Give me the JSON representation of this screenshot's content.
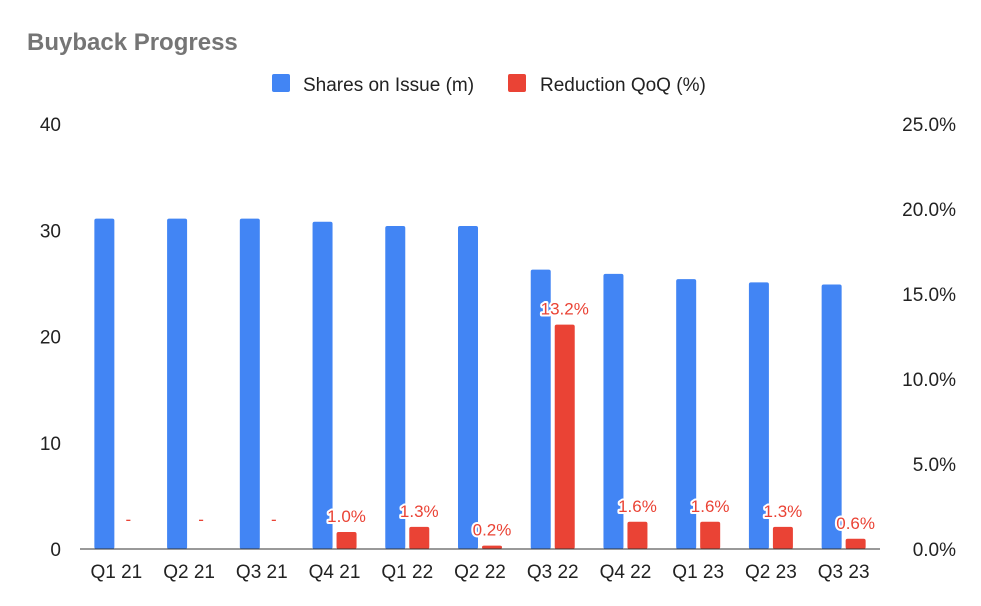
{
  "chart_data": {
    "type": "bar",
    "title": "Buyback Progress",
    "categories": [
      "Q1 21",
      "Q2 21",
      "Q3 21",
      "Q4 21",
      "Q1 22",
      "Q2 22",
      "Q3 22",
      "Q4 22",
      "Q1 23",
      "Q2 23",
      "Q3 23"
    ],
    "series": [
      {
        "name": "Shares on Issue (m)",
        "axis": "left",
        "color": "#4285f4",
        "values": [
          31.1,
          31.1,
          31.1,
          30.8,
          30.4,
          30.4,
          26.3,
          25.9,
          25.4,
          25.1,
          24.9
        ]
      },
      {
        "name": "Reduction QoQ (%)",
        "axis": "right",
        "color": "#ea4335",
        "values": [
          0,
          0,
          0,
          1.0,
          1.3,
          0.2,
          13.2,
          1.6,
          1.6,
          1.3,
          0.6
        ],
        "labels": [
          "-",
          "-",
          "-",
          "1.0%",
          "1.3%",
          "0.2%",
          "13.2%",
          "1.6%",
          "1.6%",
          "1.3%",
          "0.6%"
        ]
      }
    ],
    "yaxis_left": {
      "min": 0,
      "max": 40,
      "ticks": [
        "0",
        "10",
        "20",
        "30",
        "40"
      ]
    },
    "yaxis_right": {
      "min": 0,
      "max": 25,
      "ticks": [
        "0.0%",
        "5.0%",
        "10.0%",
        "15.0%",
        "20.0%",
        "25.0%"
      ]
    },
    "grid": false,
    "legend": "top-center"
  }
}
